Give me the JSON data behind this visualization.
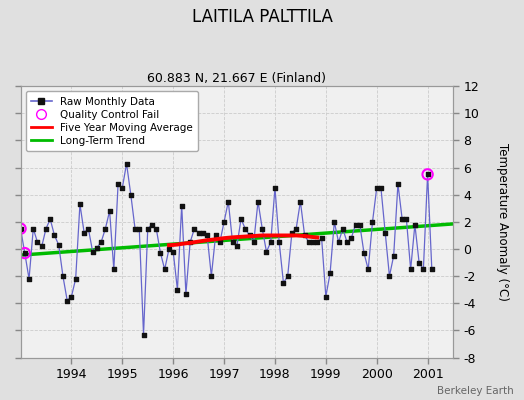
{
  "title": "LAITILA PALTTILA",
  "subtitle": "60.883 N, 21.667 E (Finland)",
  "ylabel": "Temperature Anomaly (°C)",
  "watermark": "Berkeley Earth",
  "ylim": [
    -8,
    12
  ],
  "xlim": [
    1993.0,
    2001.5
  ],
  "yticks": [
    -8,
    -6,
    -4,
    -2,
    0,
    2,
    4,
    6,
    8,
    10,
    12
  ],
  "xticks": [
    1994,
    1995,
    1996,
    1997,
    1998,
    1999,
    2000,
    2001
  ],
  "bg_color": "#e0e0e0",
  "plot_bg_color": "#f0f0f0",
  "raw_color": "#6666cc",
  "raw_dot_color": "#111111",
  "ma_color": "#ff0000",
  "trend_color": "#00bb00",
  "qc_color": "#ff00ff",
  "legend_items": [
    {
      "label": "Raw Monthly Data",
      "color": "#6666cc",
      "type": "line_dot"
    },
    {
      "label": "Quality Control Fail",
      "color": "#ff00ff",
      "type": "circle"
    },
    {
      "label": "Five Year Moving Average",
      "color": "#ff0000",
      "type": "line"
    },
    {
      "label": "Long-Term Trend",
      "color": "#00bb00",
      "type": "line"
    }
  ],
  "raw_data": [
    [
      1993.0,
      1.5
    ],
    [
      1993.083,
      -0.3
    ],
    [
      1993.167,
      -2.2
    ],
    [
      1993.25,
      1.5
    ],
    [
      1993.333,
      0.5
    ],
    [
      1993.417,
      0.2
    ],
    [
      1993.5,
      1.5
    ],
    [
      1993.583,
      2.2
    ],
    [
      1993.667,
      1.0
    ],
    [
      1993.75,
      0.3
    ],
    [
      1993.833,
      -2.0
    ],
    [
      1993.917,
      -3.8
    ],
    [
      1994.0,
      -3.5
    ],
    [
      1994.083,
      -2.2
    ],
    [
      1994.167,
      3.3
    ],
    [
      1994.25,
      1.2
    ],
    [
      1994.333,
      1.5
    ],
    [
      1994.417,
      -0.2
    ],
    [
      1994.5,
      0.1
    ],
    [
      1994.583,
      0.5
    ],
    [
      1994.667,
      1.5
    ],
    [
      1994.75,
      2.8
    ],
    [
      1994.833,
      -1.5
    ],
    [
      1994.917,
      4.8
    ],
    [
      1995.0,
      4.5
    ],
    [
      1995.083,
      6.3
    ],
    [
      1995.167,
      4.0
    ],
    [
      1995.25,
      1.5
    ],
    [
      1995.333,
      1.5
    ],
    [
      1995.417,
      -6.3
    ],
    [
      1995.5,
      1.5
    ],
    [
      1995.583,
      1.8
    ],
    [
      1995.667,
      1.5
    ],
    [
      1995.75,
      -0.3
    ],
    [
      1995.833,
      -1.5
    ],
    [
      1995.917,
      0.0
    ],
    [
      1996.0,
      -0.2
    ],
    [
      1996.083,
      -3.0
    ],
    [
      1996.167,
      3.2
    ],
    [
      1996.25,
      -3.3
    ],
    [
      1996.333,
      0.5
    ],
    [
      1996.417,
      1.5
    ],
    [
      1996.5,
      1.2
    ],
    [
      1996.583,
      1.2
    ],
    [
      1996.667,
      1.0
    ],
    [
      1996.75,
      -2.0
    ],
    [
      1996.833,
      1.0
    ],
    [
      1996.917,
      0.5
    ],
    [
      1997.0,
      2.0
    ],
    [
      1997.083,
      3.5
    ],
    [
      1997.167,
      0.5
    ],
    [
      1997.25,
      0.2
    ],
    [
      1997.333,
      2.2
    ],
    [
      1997.417,
      1.5
    ],
    [
      1997.5,
      1.0
    ],
    [
      1997.583,
      0.5
    ],
    [
      1997.667,
      3.5
    ],
    [
      1997.75,
      1.5
    ],
    [
      1997.833,
      -0.2
    ],
    [
      1997.917,
      0.5
    ],
    [
      1998.0,
      4.5
    ],
    [
      1998.083,
      0.5
    ],
    [
      1998.167,
      -2.5
    ],
    [
      1998.25,
      -2.0
    ],
    [
      1998.333,
      1.2
    ],
    [
      1998.417,
      1.5
    ],
    [
      1998.5,
      3.5
    ],
    [
      1998.583,
      1.0
    ],
    [
      1998.667,
      0.5
    ],
    [
      1998.75,
      0.5
    ],
    [
      1998.833,
      0.5
    ],
    [
      1998.917,
      0.8
    ],
    [
      1999.0,
      -3.5
    ],
    [
      1999.083,
      -1.8
    ],
    [
      1999.167,
      2.0
    ],
    [
      1999.25,
      0.5
    ],
    [
      1999.333,
      1.5
    ],
    [
      1999.417,
      0.5
    ],
    [
      1999.5,
      0.8
    ],
    [
      1999.583,
      1.8
    ],
    [
      1999.667,
      1.8
    ],
    [
      1999.75,
      -0.3
    ],
    [
      1999.833,
      -1.5
    ],
    [
      1999.917,
      2.0
    ],
    [
      2000.0,
      4.5
    ],
    [
      2000.083,
      4.5
    ],
    [
      2000.167,
      1.2
    ],
    [
      2000.25,
      -2.0
    ],
    [
      2000.333,
      -0.5
    ],
    [
      2000.417,
      4.8
    ],
    [
      2000.5,
      2.2
    ],
    [
      2000.583,
      2.2
    ],
    [
      2000.667,
      -1.5
    ],
    [
      2000.75,
      1.8
    ],
    [
      2000.833,
      -1.0
    ],
    [
      2000.917,
      -1.5
    ],
    [
      2001.0,
      5.5
    ],
    [
      2001.083,
      -1.5
    ]
  ],
  "qc_fail_points": [
    [
      1993.0,
      1.5
    ],
    [
      1993.083,
      -0.3
    ],
    [
      2001.0,
      5.5
    ]
  ],
  "moving_avg": [
    [
      1995.917,
      0.28
    ],
    [
      1996.0,
      0.3
    ],
    [
      1996.083,
      0.33
    ],
    [
      1996.167,
      0.38
    ],
    [
      1996.25,
      0.42
    ],
    [
      1996.333,
      0.45
    ],
    [
      1996.417,
      0.5
    ],
    [
      1996.5,
      0.55
    ],
    [
      1996.583,
      0.6
    ],
    [
      1996.667,
      0.65
    ],
    [
      1996.75,
      0.68
    ],
    [
      1996.833,
      0.72
    ],
    [
      1996.917,
      0.76
    ],
    [
      1997.0,
      0.8
    ],
    [
      1997.083,
      0.83
    ],
    [
      1997.167,
      0.86
    ],
    [
      1997.25,
      0.88
    ],
    [
      1997.333,
      0.9
    ],
    [
      1997.417,
      0.92
    ],
    [
      1997.5,
      0.94
    ],
    [
      1997.583,
      0.96
    ],
    [
      1997.667,
      0.98
    ],
    [
      1997.75,
      1.0
    ],
    [
      1997.833,
      1.0
    ],
    [
      1997.917,
      1.0
    ],
    [
      1998.0,
      1.0
    ],
    [
      1998.083,
      1.0
    ],
    [
      1998.167,
      1.0
    ],
    [
      1998.25,
      1.0
    ],
    [
      1998.333,
      1.0
    ],
    [
      1998.417,
      1.0
    ],
    [
      1998.5,
      0.98
    ],
    [
      1998.583,
      0.96
    ],
    [
      1998.667,
      0.92
    ],
    [
      1998.75,
      0.88
    ],
    [
      1998.833,
      0.85
    ]
  ],
  "trend_line": [
    [
      1993.0,
      -0.45
    ],
    [
      2001.5,
      1.85
    ]
  ]
}
